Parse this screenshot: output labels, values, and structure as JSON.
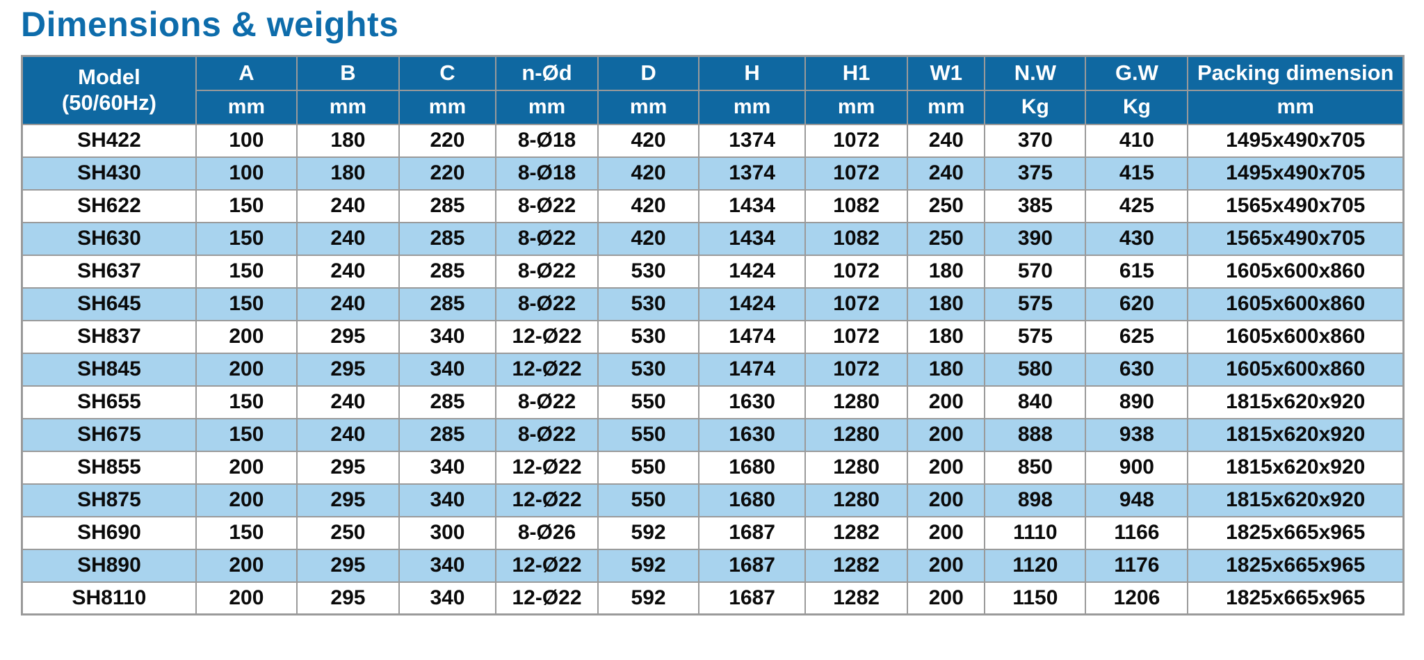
{
  "page": {
    "title": "Dimensions & weights"
  },
  "colors": {
    "title_text": "#0d6cab",
    "header_bg": "#0f68a1",
    "header_text": "#ffffff",
    "row_alt_bg": "#a8d3ee",
    "grid_border": "#9a9a9a",
    "body_text": "#0a0a0a"
  },
  "table": {
    "header": {
      "model_label": "Model",
      "model_sub": "(50/60Hz)",
      "columns": [
        {
          "label": "A",
          "unit": "mm"
        },
        {
          "label": "B",
          "unit": "mm"
        },
        {
          "label": "C",
          "unit": "mm"
        },
        {
          "label": "n-Ød",
          "unit": "mm"
        },
        {
          "label": "D",
          "unit": "mm"
        },
        {
          "label": "H",
          "unit": "mm"
        },
        {
          "label": "H1",
          "unit": "mm"
        },
        {
          "label": "W1",
          "unit": "mm"
        },
        {
          "label": "N.W",
          "unit": "Kg"
        },
        {
          "label": "G.W",
          "unit": "Kg"
        },
        {
          "label": "Packing dimension",
          "unit": "mm"
        }
      ]
    },
    "rows": [
      {
        "model": "SH422",
        "values": [
          "100",
          "180",
          "220",
          "8-Ø18",
          "420",
          "1374",
          "1072",
          "240",
          "370",
          "410",
          "1495x490x705"
        ]
      },
      {
        "model": "SH430",
        "values": [
          "100",
          "180",
          "220",
          "8-Ø18",
          "420",
          "1374",
          "1072",
          "240",
          "375",
          "415",
          "1495x490x705"
        ]
      },
      {
        "model": "SH622",
        "values": [
          "150",
          "240",
          "285",
          "8-Ø22",
          "420",
          "1434",
          "1082",
          "250",
          "385",
          "425",
          "1565x490x705"
        ]
      },
      {
        "model": "SH630",
        "values": [
          "150",
          "240",
          "285",
          "8-Ø22",
          "420",
          "1434",
          "1082",
          "250",
          "390",
          "430",
          "1565x490x705"
        ]
      },
      {
        "model": "SH637",
        "values": [
          "150",
          "240",
          "285",
          "8-Ø22",
          "530",
          "1424",
          "1072",
          "180",
          "570",
          "615",
          "1605x600x860"
        ]
      },
      {
        "model": "SH645",
        "values": [
          "150",
          "240",
          "285",
          "8-Ø22",
          "530",
          "1424",
          "1072",
          "180",
          "575",
          "620",
          "1605x600x860"
        ]
      },
      {
        "model": "SH837",
        "values": [
          "200",
          "295",
          "340",
          "12-Ø22",
          "530",
          "1474",
          "1072",
          "180",
          "575",
          "625",
          "1605x600x860"
        ]
      },
      {
        "model": "SH845",
        "values": [
          "200",
          "295",
          "340",
          "12-Ø22",
          "530",
          "1474",
          "1072",
          "180",
          "580",
          "630",
          "1605x600x860"
        ]
      },
      {
        "model": "SH655",
        "values": [
          "150",
          "240",
          "285",
          "8-Ø22",
          "550",
          "1630",
          "1280",
          "200",
          "840",
          "890",
          "1815x620x920"
        ]
      },
      {
        "model": "SH675",
        "values": [
          "150",
          "240",
          "285",
          "8-Ø22",
          "550",
          "1630",
          "1280",
          "200",
          "888",
          "938",
          "1815x620x920"
        ]
      },
      {
        "model": "SH855",
        "values": [
          "200",
          "295",
          "340",
          "12-Ø22",
          "550",
          "1680",
          "1280",
          "200",
          "850",
          "900",
          "1815x620x920"
        ]
      },
      {
        "model": "SH875",
        "values": [
          "200",
          "295",
          "340",
          "12-Ø22",
          "550",
          "1680",
          "1280",
          "200",
          "898",
          "948",
          "1815x620x920"
        ]
      },
      {
        "model": "SH690",
        "values": [
          "150",
          "250",
          "300",
          "8-Ø26",
          "592",
          "1687",
          "1282",
          "200",
          "1110",
          "1166",
          "1825x665x965"
        ]
      },
      {
        "model": "SH890",
        "values": [
          "200",
          "295",
          "340",
          "12-Ø22",
          "592",
          "1687",
          "1282",
          "200",
          "1120",
          "1176",
          "1825x665x965"
        ]
      },
      {
        "model": "SH8110",
        "values": [
          "200",
          "295",
          "340",
          "12-Ø22",
          "592",
          "1687",
          "1282",
          "200",
          "1150",
          "1206",
          "1825x665x965"
        ]
      }
    ]
  }
}
